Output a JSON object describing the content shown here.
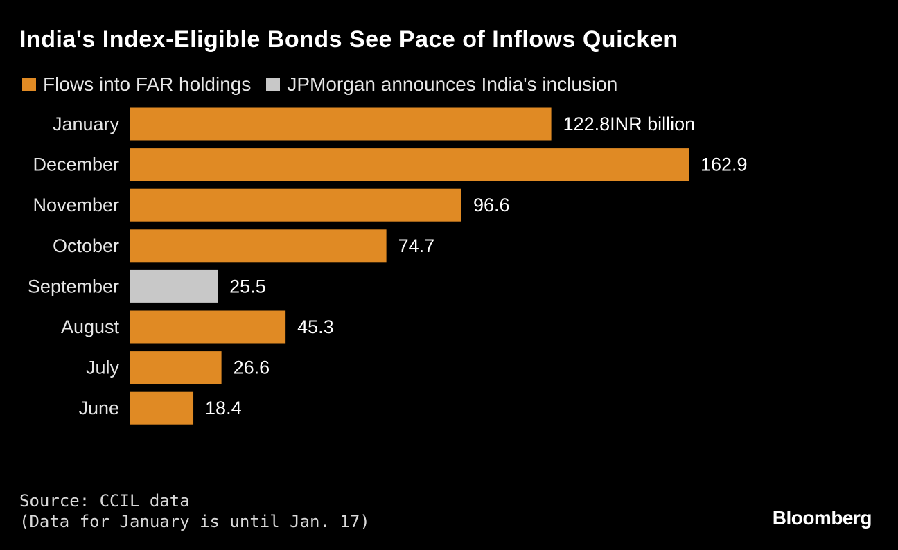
{
  "title": "India's Index-Eligible Bonds See Pace of Inflows Quicken",
  "legend": [
    {
      "label": "Flows into FAR holdings",
      "color": "#e08a24"
    },
    {
      "label": "JPMorgan announces India's inclusion",
      "color": "#c8c8c8"
    }
  ],
  "chart_data": {
    "type": "bar",
    "orientation": "horizontal",
    "categories": [
      "January",
      "December",
      "November",
      "October",
      "September",
      "August",
      "July",
      "June"
    ],
    "values": [
      122.8,
      162.9,
      96.6,
      74.7,
      25.5,
      45.3,
      26.6,
      18.4
    ],
    "data_labels": [
      "122.8INR billion",
      "162.9",
      "96.6",
      "74.7",
      "25.5",
      "45.3",
      "26.6",
      "18.4"
    ],
    "series_flags": [
      "far",
      "far",
      "far",
      "far",
      "jpm",
      "far",
      "far",
      "far"
    ],
    "unit": "INR billion",
    "xlim": [
      0,
      162.9
    ],
    "colors": {
      "far": "#e08a24",
      "jpm": "#c8c8c8"
    }
  },
  "footer": {
    "source": "Source: CCIL data",
    "note": "(Data for January is until Jan. 17)"
  },
  "brand": "Bloomberg"
}
